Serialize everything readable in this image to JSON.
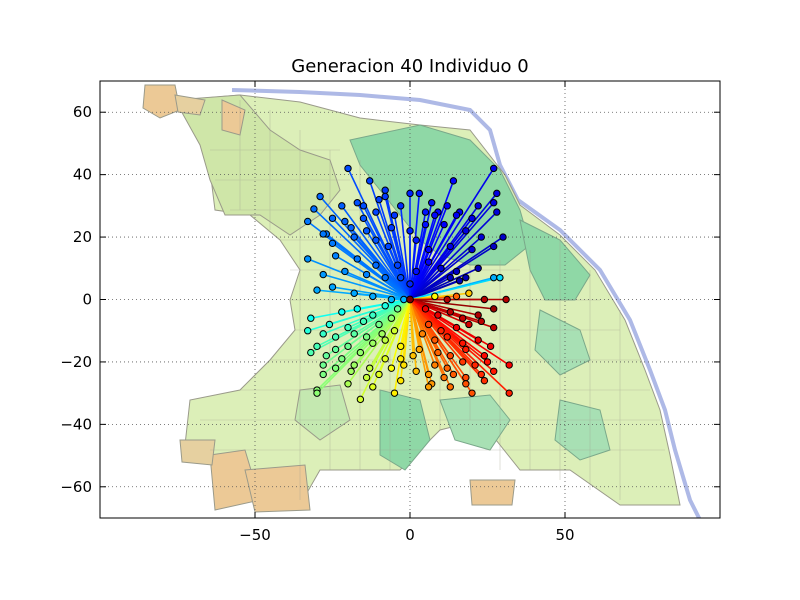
{
  "chart_data": {
    "type": "scatter",
    "title": "Generacion 40 Individuo 0",
    "xlabel": "",
    "ylabel": "",
    "xlim": [
      -100,
      100
    ],
    "ylim": [
      -70,
      70
    ],
    "x_ticks": [
      -50,
      0,
      50
    ],
    "y_ticks": [
      60,
      40,
      20,
      0,
      -20,
      -40,
      -60
    ],
    "x_tick_labels": [
      "−50",
      "0",
      "50"
    ],
    "y_tick_labels": [
      "60",
      "40",
      "20",
      "0",
      "−20",
      "−40",
      "−60"
    ],
    "grid": true,
    "legend": "none",
    "background": "map of city districts",
    "hub": [
      0,
      0
    ],
    "points": [
      [
        -20,
        42
      ],
      [
        -13,
        38
      ],
      [
        -8,
        35
      ],
      [
        -8,
        33
      ],
      [
        0,
        34
      ],
      [
        3,
        34
      ],
      [
        14,
        38
      ],
      [
        27,
        42
      ],
      [
        -29,
        33
      ],
      [
        -22,
        30
      ],
      [
        -17,
        31
      ],
      [
        -15,
        30
      ],
      [
        -10,
        32
      ],
      [
        -3,
        30
      ],
      [
        7,
        31
      ],
      [
        9,
        28
      ],
      [
        12,
        30
      ],
      [
        16,
        28
      ],
      [
        22,
        30
      ],
      [
        28,
        34
      ],
      [
        -31,
        29
      ],
      [
        -25,
        26
      ],
      [
        -21,
        25
      ],
      [
        -15,
        26
      ],
      [
        -11,
        28
      ],
      [
        -5,
        27
      ],
      [
        5,
        28
      ],
      [
        8,
        27
      ],
      [
        15,
        27
      ],
      [
        20,
        26
      ],
      [
        27,
        31
      ],
      [
        28,
        28
      ],
      [
        -33,
        25
      ],
      [
        -27,
        21
      ],
      [
        -19,
        23
      ],
      [
        -14,
        22
      ],
      [
        -6,
        23
      ],
      [
        0,
        22
      ],
      [
        5,
        24
      ],
      [
        11,
        24
      ],
      [
        18,
        22
      ],
      [
        23,
        20
      ],
      [
        30,
        20
      ],
      [
        -28,
        21
      ],
      [
        -25,
        18
      ],
      [
        -18,
        20
      ],
      [
        -11,
        19
      ],
      [
        -7,
        17
      ],
      [
        2,
        19
      ],
      [
        6,
        16
      ],
      [
        13,
        17
      ],
      [
        20,
        16
      ],
      [
        27,
        17
      ],
      [
        -33,
        13
      ],
      [
        -24,
        14
      ],
      [
        -17,
        13
      ],
      [
        -11,
        11
      ],
      [
        -4,
        11
      ],
      [
        2,
        9
      ],
      [
        6,
        12
      ],
      [
        10,
        10
      ],
      [
        15,
        9
      ],
      [
        22,
        10
      ],
      [
        -28,
        8
      ],
      [
        -21,
        9
      ],
      [
        -14,
        8
      ],
      [
        -8,
        7
      ],
      [
        -3,
        7
      ],
      [
        0,
        5
      ],
      [
        13,
        7
      ],
      [
        16,
        6
      ],
      [
        18,
        7
      ],
      [
        27,
        7
      ],
      [
        29,
        7
      ],
      [
        -30,
        3
      ],
      [
        -25,
        4
      ],
      [
        -18,
        2
      ],
      [
        -12,
        1
      ],
      [
        -6,
        0
      ],
      [
        -2,
        0
      ],
      [
        8,
        1
      ],
      [
        12,
        0
      ],
      [
        15,
        1
      ],
      [
        19,
        2
      ],
      [
        24,
        0
      ],
      [
        31,
        0
      ],
      [
        -22,
        -4
      ],
      [
        -17,
        -3
      ],
      [
        -12,
        -5
      ],
      [
        -8,
        -2
      ],
      [
        -4,
        -3
      ],
      [
        5,
        -3
      ],
      [
        9,
        -5
      ],
      [
        13,
        -4
      ],
      [
        17,
        -6
      ],
      [
        22,
        -5
      ],
      [
        27,
        -3
      ],
      [
        -32,
        -6
      ],
      [
        -26,
        -8
      ],
      [
        -20,
        -9
      ],
      [
        -15,
        -7
      ],
      [
        -10,
        -8
      ],
      [
        -6,
        -6
      ],
      [
        6,
        -8
      ],
      [
        10,
        -10
      ],
      [
        15,
        -9
      ],
      [
        19,
        -8
      ],
      [
        23,
        -7
      ],
      [
        27,
        -9
      ],
      [
        -33,
        -10
      ],
      [
        -28,
        -11
      ],
      [
        -24,
        -12
      ],
      [
        -18,
        -11
      ],
      [
        -14,
        -12
      ],
      [
        -9,
        -11
      ],
      [
        -5,
        -10
      ],
      [
        4,
        -11
      ],
      [
        8,
        -13
      ],
      [
        12,
        -12
      ],
      [
        17,
        -14
      ],
      [
        22,
        -13
      ],
      [
        26,
        -15
      ],
      [
        -30,
        -15
      ],
      [
        -24,
        -16
      ],
      [
        -20,
        -15
      ],
      [
        -16,
        -17
      ],
      [
        -12,
        -14
      ],
      [
        -8,
        -13
      ],
      [
        -3,
        -15
      ],
      [
        3,
        -16
      ],
      [
        9,
        -17
      ],
      [
        13,
        -18
      ],
      [
        18,
        -16
      ],
      [
        24,
        -18
      ],
      [
        32,
        -21
      ],
      [
        -32,
        -17
      ],
      [
        -27,
        -18
      ],
      [
        -22,
        -19
      ],
      [
        -18,
        -21
      ],
      [
        -13,
        -22
      ],
      [
        -8,
        -19
      ],
      [
        -3,
        -19
      ],
      [
        1,
        -18
      ],
      [
        8,
        -21
      ],
      [
        12,
        -22
      ],
      [
        17,
        -20
      ],
      [
        21,
        -21
      ],
      [
        25,
        -20
      ],
      [
        -28,
        -21
      ],
      [
        -24,
        -22
      ],
      [
        -19,
        -23
      ],
      [
        -14,
        -25
      ],
      [
        -10,
        -24
      ],
      [
        -6,
        -22
      ],
      [
        -2,
        -21
      ],
      [
        6,
        -24
      ],
      [
        11,
        -25
      ],
      [
        14,
        -24
      ],
      [
        18,
        -25
      ],
      [
        23,
        -24
      ],
      [
        27,
        -23
      ],
      [
        -28,
        -24
      ],
      [
        -20,
        -27
      ],
      [
        -12,
        -28
      ],
      [
        -3,
        -26
      ],
      [
        2,
        -23
      ],
      [
        7,
        -27
      ],
      [
        13,
        -28
      ],
      [
        18,
        -27
      ],
      [
        24,
        -26
      ],
      [
        -30,
        -29
      ],
      [
        -30,
        -30
      ],
      [
        -16,
        -32
      ],
      [
        -5,
        -30
      ],
      [
        6,
        -28
      ],
      [
        20,
        -30
      ],
      [
        32,
        -30
      ]
    ]
  }
}
